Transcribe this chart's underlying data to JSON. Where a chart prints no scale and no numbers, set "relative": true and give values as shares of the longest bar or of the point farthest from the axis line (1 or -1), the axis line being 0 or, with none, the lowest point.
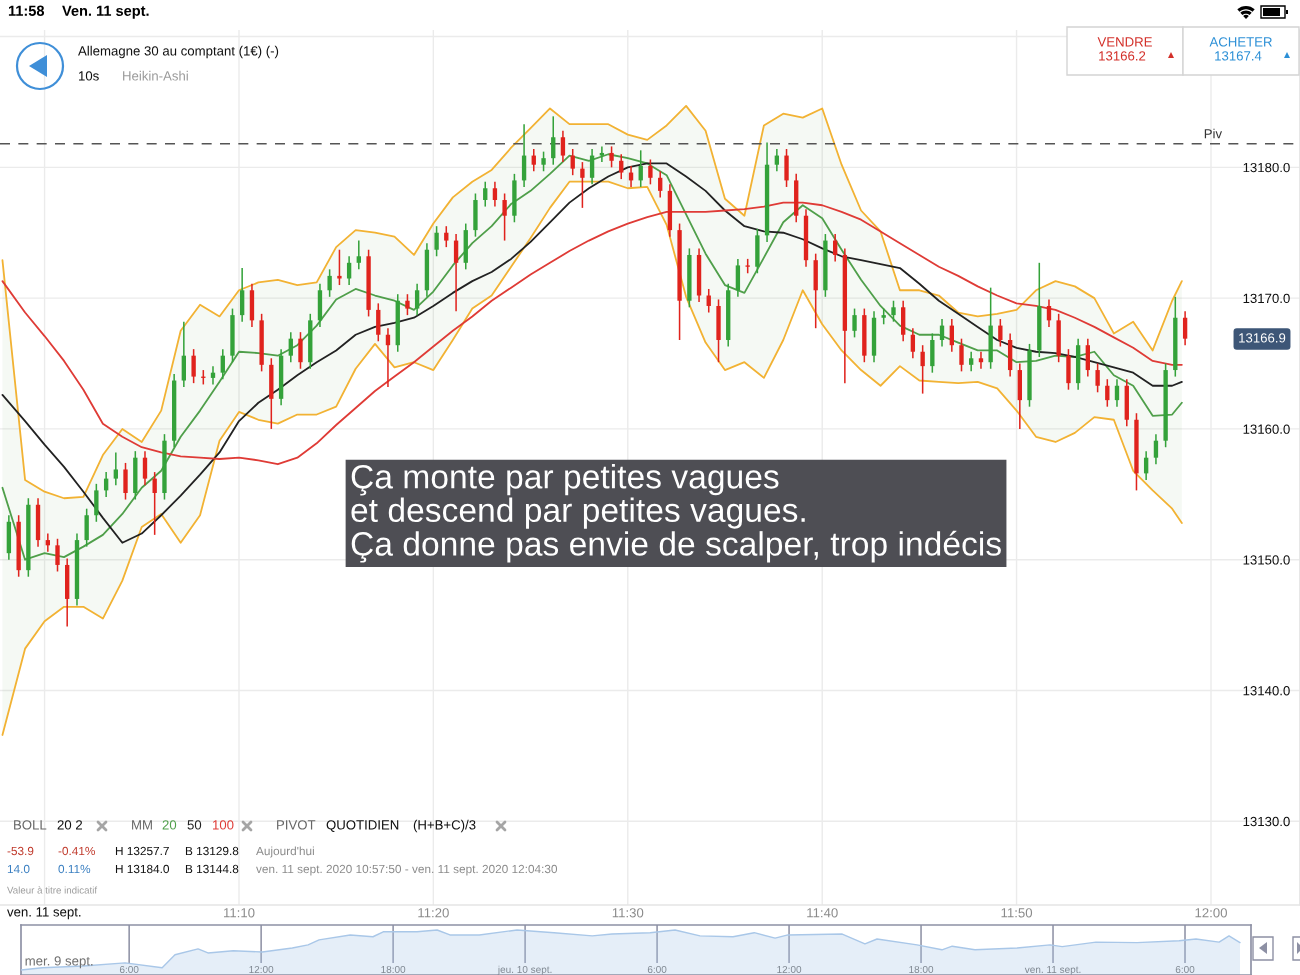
{
  "chart_data": [
    {
      "type": "candlestick",
      "title": "Allemagne 30 au comptant (1€) (-)",
      "x": [
        10.9694,
        10.9778,
        10.9861,
        10.9944,
        11.0028,
        11.0111,
        11.0194,
        11.0278,
        11.0361,
        11.0444,
        11.0528,
        11.0611,
        11.0694,
        11.0778,
        11.0861,
        11.0944,
        11.1028,
        11.1111,
        11.1194,
        11.1278,
        11.1361,
        11.1444,
        11.1528,
        11.1611,
        11.1694,
        11.1778,
        11.1861,
        11.1944,
        11.2028,
        11.2111,
        11.2194,
        11.2278,
        11.2361,
        11.2444,
        11.2528,
        11.2611,
        11.2694,
        11.2778,
        11.2861,
        11.2944,
        11.3028,
        11.3111,
        11.3194,
        11.3278,
        11.3361,
        11.3444,
        11.3528,
        11.3611,
        11.3694,
        11.3778,
        11.3861,
        11.3944,
        11.4028,
        11.4111,
        11.4194,
        11.4278,
        11.4361,
        11.4444,
        11.4528,
        11.4611,
        11.4694,
        11.4778,
        11.4861,
        11.4944,
        11.5028,
        11.5111,
        11.5194,
        11.5278,
        11.5361,
        11.5444,
        11.5528,
        11.5611,
        11.5694,
        11.5778,
        11.5861,
        11.5944,
        11.6028,
        11.6111,
        11.6194,
        11.6278,
        11.6361,
        11.6444,
        11.6528,
        11.6611,
        11.6694,
        11.6778,
        11.6861,
        11.6944,
        11.7028,
        11.7111,
        11.7194,
        11.7278,
        11.7361,
        11.7444,
        11.7528,
        11.7611,
        11.7694,
        11.7778,
        11.7861,
        11.7944,
        11.8028,
        11.8111,
        11.8194,
        11.8278,
        11.8361,
        11.8444,
        11.8528,
        11.8611,
        11.8694,
        11.8778,
        11.8861,
        11.8944,
        11.9028,
        11.9111,
        11.9194,
        11.9278,
        11.9361,
        11.9444,
        11.9528,
        11.9611,
        11.9694,
        11.9778
      ],
      "ohlc": [
        [
          13150.5,
          13153.4,
          13150.0,
          13152.9
        ],
        [
          13152.9,
          13153.4,
          13148.7,
          13149.2
        ],
        [
          13149.2,
          13154.7,
          13148.7,
          13154.2
        ],
        [
          13154.2,
          13154.7,
          13151.0,
          13151.5
        ],
        [
          13151.5,
          13152.0,
          13150.6,
          13151.1
        ],
        [
          13151.1,
          13151.6,
          13149.1,
          13149.6
        ],
        [
          13149.6,
          13150.1,
          13144.9,
          13147.0
        ],
        [
          13147.0,
          13152.0,
          13146.5,
          13151.5
        ],
        [
          13151.5,
          13153.9,
          13151.0,
          13153.4
        ],
        [
          13153.4,
          13155.8,
          13152.9,
          13155.3
        ],
        [
          13155.3,
          13156.7,
          13154.8,
          13156.2
        ],
        [
          13156.2,
          13158.2,
          13155.7,
          13156.9
        ],
        [
          13156.9,
          13157.4,
          13154.6,
          13155.1
        ],
        [
          13155.1,
          13158.3,
          13154.6,
          13157.8
        ],
        [
          13157.8,
          13158.3,
          13155.7,
          13156.2
        ],
        [
          13156.2,
          13156.7,
          13151.9,
          13155.1
        ],
        [
          13155.1,
          13159.6,
          13154.6,
          13159.1
        ],
        [
          13159.1,
          13164.2,
          13158.6,
          13163.7
        ],
        [
          13163.7,
          13168.2,
          13163.2,
          13165.6
        ],
        [
          13165.6,
          13166.1,
          13163.5,
          13164.0
        ],
        [
          13164.0,
          13164.5,
          13163.4,
          13163.9
        ],
        [
          13163.9,
          13164.8,
          13163.4,
          13164.3
        ],
        [
          13164.3,
          13166.1,
          13163.8,
          13165.6
        ],
        [
          13165.6,
          13169.2,
          13165.1,
          13168.7
        ],
        [
          13168.7,
          13172.3,
          13168.2,
          13170.6
        ],
        [
          13170.6,
          13171.1,
          13167.8,
          13168.3
        ],
        [
          13168.3,
          13168.8,
          13164.4,
          13164.9
        ],
        [
          13164.9,
          13165.4,
          13160.0,
          13162.3
        ],
        [
          13162.3,
          13166.1,
          13161.8,
          13165.6
        ],
        [
          13165.6,
          13167.4,
          13165.1,
          13166.9
        ],
        [
          13166.9,
          13167.4,
          13164.6,
          13165.1
        ],
        [
          13165.1,
          13168.8,
          13164.6,
          13168.3
        ],
        [
          13168.3,
          13171.1,
          13167.8,
          13170.6
        ],
        [
          13170.6,
          13172.2,
          13170.1,
          13171.7
        ],
        [
          13171.7,
          13173.7,
          13171.0,
          13171.5
        ],
        [
          13171.5,
          13173.2,
          13171.0,
          13172.7
        ],
        [
          13172.7,
          13174.4,
          13172.2,
          13173.2
        ],
        [
          13173.2,
          13173.7,
          13168.6,
          13169.1
        ],
        [
          13169.1,
          13169.6,
          13166.7,
          13167.2
        ],
        [
          13167.2,
          13167.7,
          13163.2,
          13166.4
        ],
        [
          13166.4,
          13170.3,
          13165.9,
          13169.8
        ],
        [
          13169.8,
          13170.3,
          13168.7,
          13169.2
        ],
        [
          13169.2,
          13171.1,
          13168.7,
          13170.6
        ],
        [
          13170.6,
          13174.2,
          13170.1,
          13173.7
        ],
        [
          13173.7,
          13175.5,
          13173.2,
          13175.0
        ],
        [
          13175.0,
          13175.5,
          13173.9,
          13174.4
        ],
        [
          13174.4,
          13174.9,
          13169.0,
          13172.7
        ],
        [
          13172.7,
          13175.7,
          13172.2,
          13175.2
        ],
        [
          13175.2,
          13178.0,
          13174.7,
          13177.5
        ],
        [
          13177.5,
          13178.9,
          13177.0,
          13178.4
        ],
        [
          13178.4,
          13178.9,
          13177.0,
          13177.5
        ],
        [
          13177.5,
          13178.0,
          13174.4,
          13176.3
        ],
        [
          13176.3,
          13179.5,
          13175.8,
          13179.0
        ],
        [
          13179.0,
          13183.3,
          13178.5,
          13180.9
        ],
        [
          13180.9,
          13181.4,
          13179.7,
          13180.2
        ],
        [
          13180.2,
          13181.2,
          13179.7,
          13180.7
        ],
        [
          13180.7,
          13183.9,
          13180.2,
          13182.3
        ],
        [
          13182.3,
          13182.8,
          13180.4,
          13180.9
        ],
        [
          13180.9,
          13181.4,
          13179.4,
          13179.9
        ],
        [
          13179.9,
          13180.4,
          13176.9,
          13179.2
        ],
        [
          13179.2,
          13181.4,
          13178.7,
          13180.9
        ],
        [
          13180.9,
          13181.6,
          13180.4,
          13181.1
        ],
        [
          13181.1,
          13181.6,
          13180.0,
          13180.5
        ],
        [
          13180.5,
          13181.0,
          13179.1,
          13179.6
        ],
        [
          13179.6,
          13180.1,
          13178.5,
          13179.0
        ],
        [
          13179.0,
          13181.3,
          13178.5,
          13180.1
        ],
        [
          13180.1,
          13180.6,
          13178.7,
          13179.2
        ],
        [
          13179.2,
          13179.7,
          13177.7,
          13178.2
        ],
        [
          13178.2,
          13178.7,
          13174.7,
          13175.2
        ],
        [
          13175.2,
          13175.7,
          13166.8,
          13169.8
        ],
        [
          13169.8,
          13173.8,
          13169.3,
          13173.3
        ],
        [
          13173.3,
          13173.8,
          13169.7,
          13170.2
        ],
        [
          13170.2,
          13170.7,
          13168.9,
          13169.4
        ],
        [
          13169.4,
          13169.9,
          13165.1,
          13166.8
        ],
        [
          13166.8,
          13171.1,
          13166.3,
          13170.6
        ],
        [
          13170.6,
          13173.0,
          13170.1,
          13172.5
        ],
        [
          13172.5,
          13173.0,
          13171.9,
          13172.4
        ],
        [
          13172.4,
          13175.3,
          13171.9,
          13174.8
        ],
        [
          13174.8,
          13181.9,
          13174.3,
          13180.2
        ],
        [
          13180.2,
          13181.4,
          13179.7,
          13180.9
        ],
        [
          13180.9,
          13181.4,
          13178.5,
          13179.0
        ],
        [
          13179.0,
          13179.5,
          13175.8,
          13176.3
        ],
        [
          13176.3,
          13176.8,
          13172.4,
          13172.9
        ],
        [
          13172.9,
          13173.4,
          13167.7,
          13170.6
        ],
        [
          13170.6,
          13174.9,
          13170.1,
          13174.4
        ],
        [
          13174.4,
          13174.9,
          13172.8,
          13173.3
        ],
        [
          13173.3,
          13173.8,
          13163.5,
          13167.5
        ],
        [
          13167.5,
          13169.2,
          13167.0,
          13168.7
        ],
        [
          13168.7,
          13169.2,
          13165.1,
          13165.6
        ],
        [
          13165.6,
          13169.0,
          13165.1,
          13168.5
        ],
        [
          13168.5,
          13169.2,
          13168.0,
          13168.7
        ],
        [
          13168.7,
          13169.8,
          13168.2,
          13169.3
        ],
        [
          13169.3,
          13169.8,
          13166.7,
          13167.2
        ],
        [
          13167.2,
          13167.7,
          13165.4,
          13165.9
        ],
        [
          13165.9,
          13166.4,
          13162.7,
          13164.8
        ],
        [
          13164.8,
          13167.3,
          13164.3,
          13166.8
        ],
        [
          13166.8,
          13168.4,
          13166.3,
          13167.9
        ],
        [
          13167.9,
          13168.4,
          13165.9,
          13166.4
        ],
        [
          13166.4,
          13166.9,
          13164.4,
          13164.9
        ],
        [
          13164.9,
          13165.9,
          13164.4,
          13165.4
        ],
        [
          13165.4,
          13165.9,
          13164.6,
          13165.1
        ],
        [
          13165.1,
          13170.8,
          13164.6,
          13167.9
        ],
        [
          13167.9,
          13168.4,
          13166.3,
          13166.8
        ],
        [
          13166.8,
          13167.3,
          13164.0,
          13164.5
        ],
        [
          13164.5,
          13165.0,
          13160.0,
          13162.2
        ],
        [
          13162.2,
          13166.5,
          13161.7,
          13166.0
        ],
        [
          13166.0,
          13172.7,
          13165.5,
          13169.4
        ],
        [
          13169.4,
          13169.9,
          13167.8,
          13168.3
        ],
        [
          13168.3,
          13168.8,
          13165.1,
          13165.6
        ],
        [
          13165.6,
          13166.1,
          13163.0,
          13163.5
        ],
        [
          13163.5,
          13166.9,
          13163.0,
          13166.4
        ],
        [
          13166.4,
          13166.9,
          13164.0,
          13164.5
        ],
        [
          13164.5,
          13165.0,
          13162.8,
          13163.3
        ],
        [
          13163.3,
          13163.8,
          13161.7,
          13162.2
        ],
        [
          13162.2,
          13163.8,
          13161.7,
          13163.3
        ],
        [
          13163.3,
          13163.8,
          13160.2,
          13160.7
        ],
        [
          13160.7,
          13161.2,
          13155.3,
          13156.6
        ],
        [
          13156.6,
          13158.3,
          13156.1,
          13157.8
        ],
        [
          13157.8,
          13159.6,
          13157.3,
          13159.1
        ],
        [
          13159.1,
          13165.0,
          13158.6,
          13164.5
        ],
        [
          13164.5,
          13170.1,
          13164.0,
          13168.5
        ],
        [
          13168.5,
          13169.0,
          13166.4,
          13166.9
        ]
      ],
      "colors": [
        "#34a23a",
        "#e0231d",
        "#34a23a",
        "#e0231d",
        "#e0231d",
        "#e0231d",
        "#e0231d",
        "#34a23a",
        "#34a23a",
        "#34a23a",
        "#34a23a",
        "#34a23a",
        "#e0231d",
        "#34a23a",
        "#e0231d",
        "#e0231d",
        "#34a23a",
        "#34a23a",
        "#34a23a",
        "#e0231d",
        "#e0231d",
        "#34a23a",
        "#34a23a",
        "#34a23a",
        "#34a23a",
        "#e0231d",
        "#e0231d",
        "#e0231d",
        "#34a23a",
        "#34a23a",
        "#e0231d",
        "#34a23a",
        "#34a23a",
        "#34a23a",
        "#e0231d",
        "#34a23a",
        "#34a23a",
        "#e0231d",
        "#e0231d",
        "#e0231d",
        "#34a23a",
        "#e0231d",
        "#34a23a",
        "#34a23a",
        "#34a23a",
        "#e0231d",
        "#e0231d",
        "#34a23a",
        "#34a23a",
        "#34a23a",
        "#e0231d",
        "#e0231d",
        "#34a23a",
        "#34a23a",
        "#e0231d",
        "#34a23a",
        "#34a23a",
        "#e0231d",
        "#e0231d",
        "#e0231d",
        "#34a23a",
        "#34a23a",
        "#e0231d",
        "#e0231d",
        "#e0231d",
        "#34a23a",
        "#e0231d",
        "#e0231d",
        "#e0231d",
        "#e0231d",
        "#34a23a",
        "#e0231d",
        "#e0231d",
        "#e0231d",
        "#34a23a",
        "#34a23a",
        "#e0231d",
        "#34a23a",
        "#34a23a",
        "#34a23a",
        "#e0231d",
        "#e0231d",
        "#e0231d",
        "#e0231d",
        "#34a23a",
        "#e0231d",
        "#e0231d",
        "#34a23a",
        "#e0231d",
        "#34a23a",
        "#34a23a",
        "#34a23a",
        "#e0231d",
        "#e0231d",
        "#e0231d",
        "#34a23a",
        "#34a23a",
        "#e0231d",
        "#e0231d",
        "#34a23a",
        "#e0231d",
        "#34a23a",
        "#e0231d",
        "#e0231d",
        "#e0231d",
        "#34a23a",
        "#34a23a",
        "#e0231d",
        "#e0231d",
        "#e0231d",
        "#34a23a",
        "#e0231d",
        "#e0231d",
        "#e0231d",
        "#34a23a",
        "#e0231d",
        "#e0231d",
        "#34a23a",
        "#34a23a",
        "#34a23a",
        "#34a23a",
        "#e0231d"
      ],
      "series": [
        {
          "type": "line",
          "color": "#f2b233",
          "x": [
            10.9639,
            10.9833,
            11.0,
            11.0167,
            11.0333,
            11.05,
            11.0667,
            11.0833,
            11.1,
            11.1167,
            11.1333,
            11.15,
            11.1667,
            11.1833,
            11.2,
            11.2167,
            11.2333,
            11.25,
            11.2667,
            11.2833,
            11.3,
            11.3167,
            11.3333,
            11.35,
            11.3667,
            11.3833,
            11.4,
            11.4167,
            11.4333,
            11.45,
            11.4667,
            11.4833,
            11.5,
            11.5167,
            11.5333,
            11.55,
            11.5667,
            11.5833,
            11.6,
            11.6167,
            11.6333,
            11.65,
            11.6667,
            11.6833,
            11.7,
            11.7167,
            11.7333,
            11.75,
            11.7667,
            11.7833,
            11.8,
            11.8167,
            11.8333,
            11.85,
            11.8667,
            11.8833,
            11.9,
            11.9167,
            11.9333,
            11.95,
            11.9667,
            11.975
          ],
          "values": [
            13172.9,
            13156.1,
            13155.2,
            13154.7,
            13154.8,
            13158.0,
            13160.0,
            13159.0,
            13161.4,
            13167.5,
            13169.5,
            13168.6,
            13170.6,
            13171.2,
            13171.4,
            13171.0,
            13171.2,
            13173.9,
            13175.2,
            13175.0,
            13174.7,
            13173.3,
            13175.7,
            13177.7,
            13178.9,
            13179.8,
            13181.5,
            13183.0,
            13184.5,
            13183.3,
            13183.3,
            13183.3,
            13182.5,
            13182.1,
            13183.2,
            13184.7,
            13182.8,
            13177.6,
            13176.3,
            13183.2,
            13184.1,
            13183.8,
            13184.5,
            13180.2,
            13176.7,
            13175.1,
            13170.6,
            13170.6,
            13170.2,
            13168.9,
            13168.6,
            13168.8,
            13169.1,
            13170.6,
            13171.3,
            13170.9,
            13170.0,
            13167.3,
            13168.2,
            13166.0,
            13169.8,
            13171.3
          ]
        },
        {
          "type": "line",
          "color": "#f2b233",
          "x": [
            10.9639,
            10.9833,
            11.0,
            11.0167,
            11.0333,
            11.05,
            11.0667,
            11.0833,
            11.1,
            11.1167,
            11.1333,
            11.15,
            11.1667,
            11.1833,
            11.2,
            11.2167,
            11.2333,
            11.25,
            11.2667,
            11.2833,
            11.3,
            11.3167,
            11.3333,
            11.35,
            11.3667,
            11.3833,
            11.4,
            11.4167,
            11.4333,
            11.45,
            11.4667,
            11.4833,
            11.5,
            11.5167,
            11.5333,
            11.55,
            11.5667,
            11.5833,
            11.6,
            11.6167,
            11.6333,
            11.65,
            11.6667,
            11.6833,
            11.7,
            11.7167,
            11.7333,
            11.75,
            11.7667,
            11.7833,
            11.8,
            11.8167,
            11.8333,
            11.85,
            11.8667,
            11.8833,
            11.9,
            11.9167,
            11.9333,
            11.95,
            11.9667,
            11.975
          ],
          "values": [
            13136.6,
            13143.2,
            13145.3,
            13146.4,
            13146.4,
            13145.5,
            13148.4,
            13152.5,
            13153.5,
            13151.3,
            13153.4,
            13159.1,
            13161.3,
            13160.7,
            13160.4,
            13161.1,
            13161.1,
            13161.7,
            13164.6,
            13166.5,
            13164.7,
            13165.1,
            13164.5,
            13166.8,
            13169.2,
            13170.2,
            13172.4,
            13174.6,
            13176.9,
            13178.9,
            13178.9,
            13178.9,
            13178.4,
            13178.5,
            13175.6,
            13170.1,
            13166.6,
            13164.5,
            13165.1,
            13163.9,
            13166.8,
            13170.6,
            13168.0,
            13166.0,
            13164.5,
            13163.3,
            13164.8,
            13163.7,
            13163.6,
            13163.5,
            13163.6,
            13163.1,
            13161.4,
            13159.4,
            13159.0,
            13159.7,
            13160.9,
            13160.7,
            13156.8,
            13155.3,
            13153.9,
            13152.8
          ]
        },
        {
          "type": "line",
          "name": "20",
          "color": "#4f9f4a",
          "x": [
            10.9639,
            10.9833,
            11.0,
            11.0167,
            11.0333,
            11.05,
            11.0667,
            11.0833,
            11.1,
            11.1167,
            11.1333,
            11.15,
            11.1667,
            11.1833,
            11.2,
            11.2167,
            11.2333,
            11.25,
            11.2667,
            11.2833,
            11.3,
            11.3167,
            11.3333,
            11.35,
            11.3667,
            11.3833,
            11.4,
            11.4167,
            11.4333,
            11.45,
            11.4667,
            11.4833,
            11.5,
            11.5167,
            11.5333,
            11.55,
            11.5667,
            11.5833,
            11.6,
            11.6167,
            11.6333,
            11.65,
            11.6667,
            11.6833,
            11.7,
            11.7167,
            11.7333,
            11.75,
            11.7667,
            11.7833,
            11.8,
            11.8167,
            11.8333,
            11.85,
            11.8667,
            11.8833,
            11.9,
            11.9167,
            11.9333,
            11.95,
            11.9667,
            11.975
          ],
          "values": [
            13155.5,
            13150.0,
            13150.5,
            13150.2,
            13151.0,
            13151.9,
            13153.5,
            13155.5,
            13156.8,
            13159.4,
            13161.4,
            13163.6,
            13165.9,
            13165.8,
            13165.6,
            13166.4,
            13167.9,
            13169.9,
            13170.7,
            13170.2,
            13169.8,
            13169.1,
            13170.5,
            13172.5,
            13174.2,
            13175.5,
            13177.2,
            13178.2,
            13179.5,
            13180.9,
            13180.5,
            13181.0,
            13180.7,
            13180.3,
            13179.4,
            13176.4,
            13173.4,
            13171.0,
            13170.4,
            13173.1,
            13175.8,
            13177.1,
            13176.1,
            13173.7,
            13171.4,
            13169.4,
            13167.9,
            13167.2,
            13167.2,
            13166.6,
            13166.0,
            13166.0,
            13165.1,
            13165.2,
            13165.6,
            13165.5,
            13165.9,
            13164.1,
            13163.3,
            13161.0,
            13161.1,
            13162.0
          ],
          "upper": [
            13172.9,
            13156.1,
            13155.2,
            13154.7,
            13154.8,
            13158.0,
            13160.0,
            13159.0,
            13161.4,
            13167.5,
            13169.5,
            13168.6,
            13170.6,
            13171.2,
            13171.4,
            13171.0,
            13171.2,
            13173.9,
            13175.2,
            13175.0,
            13174.7,
            13173.3,
            13175.7,
            13177.7,
            13178.9,
            13179.8,
            13181.5,
            13183.0,
            13184.5,
            13183.3,
            13183.3,
            13183.3,
            13182.5,
            13182.1,
            13183.2,
            13184.7,
            13182.8,
            13177.6,
            13176.3,
            13183.2,
            13184.1,
            13183.8,
            13184.5,
            13180.2,
            13176.7,
            13175.1,
            13170.6,
            13170.6,
            13170.2,
            13168.9,
            13168.6,
            13168.8,
            13169.1,
            13170.6,
            13171.3,
            13170.9,
            13170.0,
            13167.3,
            13168.2,
            13166.0,
            13169.8,
            13171.3
          ],
          "lower": [
            13136.6,
            13143.2,
            13145.3,
            13146.4,
            13146.4,
            13145.5,
            13148.4,
            13152.5,
            13153.5,
            13151.3,
            13153.4,
            13159.1,
            13161.3,
            13160.7,
            13160.4,
            13161.1,
            13161.1,
            13161.7,
            13164.6,
            13166.5,
            13164.7,
            13165.1,
            13164.5,
            13166.8,
            13169.2,
            13170.2,
            13172.4,
            13174.6,
            13176.9,
            13178.9,
            13178.9,
            13178.9,
            13178.4,
            13178.5,
            13175.6,
            13170.1,
            13166.6,
            13164.5,
            13165.1,
            13163.9,
            13166.8,
            13170.6,
            13168.0,
            13166.0,
            13164.5,
            13163.3,
            13164.8,
            13163.7,
            13163.6,
            13163.5,
            13163.6,
            13163.1,
            13161.4,
            13159.4,
            13159.0,
            13159.7,
            13160.9,
            13160.7,
            13156.8,
            13155.3,
            13153.9,
            13152.8
          ]
        },
        {
          "type": "line",
          "name": "50",
          "color": "#222222",
          "x": [
            10.9639,
            10.9833,
            11.0,
            11.0167,
            11.0333,
            11.05,
            11.0667,
            11.0833,
            11.1,
            11.1167,
            11.1333,
            11.15,
            11.1667,
            11.1833,
            11.2,
            11.2167,
            11.2333,
            11.25,
            11.2667,
            11.2833,
            11.3,
            11.3167,
            11.3333,
            11.35,
            11.3667,
            11.3833,
            11.4,
            11.4167,
            11.4333,
            11.45,
            11.4667,
            11.4833,
            11.5,
            11.5167,
            11.5333,
            11.55,
            11.5667,
            11.5833,
            11.6,
            11.6167,
            11.6333,
            11.65,
            11.6667,
            11.6833,
            11.7,
            11.7167,
            11.7333,
            11.75,
            11.7667,
            11.7833,
            11.8,
            11.8167,
            11.8333,
            11.85,
            11.8667,
            11.8833,
            11.9,
            11.9167,
            11.9333,
            11.95,
            11.9667,
            11.975
          ],
          "values": [
            13162.6,
            13160.6,
            13158.8,
            13157.1,
            13155.2,
            13153.2,
            13151.3,
            13152.0,
            13153.4,
            13154.9,
            13156.5,
            13158.2,
            13160.6,
            13162.0,
            13163.0,
            13164.1,
            13165.1,
            13166.0,
            13167.2,
            13167.8,
            13168.1,
            13168.5,
            13169.4,
            13170.4,
            13171.3,
            13172.0,
            13173.0,
            13174.3,
            13175.8,
            13177.3,
            13178.4,
            13179.3,
            13180.0,
            13180.3,
            13180.3,
            13179.3,
            13178.2,
            13176.7,
            13175.5,
            13175.1,
            13175.0,
            13174.5,
            13173.8,
            13173.2,
            13172.9,
            13172.6,
            13172.3,
            13171.1,
            13169.8,
            13168.8,
            13167.8,
            13166.8,
            13166.2,
            13165.9,
            13165.8,
            13165.5,
            13165.1,
            13164.7,
            13164.3,
            13163.3,
            13163.3,
            13163.6
          ]
        },
        {
          "type": "line",
          "name": "100",
          "color": "#df3b36",
          "x": [
            10.9639,
            10.9833,
            11.0,
            11.0167,
            11.0333,
            11.05,
            11.0667,
            11.0833,
            11.1,
            11.1167,
            11.1333,
            11.15,
            11.1667,
            11.1833,
            11.2,
            11.2167,
            11.2333,
            11.25,
            11.2667,
            11.2833,
            11.3,
            11.3167,
            11.3333,
            11.35,
            11.3667,
            11.3833,
            11.4,
            11.4167,
            11.4333,
            11.45,
            11.4667,
            11.4833,
            11.5,
            11.5167,
            11.5333,
            11.55,
            11.5667,
            11.5833,
            11.6,
            11.6167,
            11.6333,
            11.65,
            11.6667,
            11.6833,
            11.7,
            11.7167,
            11.7333,
            11.75,
            11.7667,
            11.7833,
            11.8,
            11.8167,
            11.8333,
            11.85,
            11.8667,
            11.8833,
            11.9,
            11.9167,
            11.9333,
            11.95,
            11.9667,
            11.975
          ],
          "values": [
            13171.3,
            13168.9,
            13167.1,
            13165.2,
            13163.0,
            13160.4,
            13159.4,
            13158.6,
            13158.2,
            13157.9,
            13157.8,
            13157.7,
            13157.8,
            13157.6,
            13157.3,
            13157.8,
            13158.9,
            13160.3,
            13161.6,
            13162.9,
            13164.0,
            13165.1,
            13166.3,
            13167.5,
            13168.6,
            13169.8,
            13170.8,
            13171.8,
            13172.7,
            13173.6,
            13174.4,
            13175.1,
            13175.7,
            13176.2,
            13176.6,
            13176.6,
            13176.6,
            13176.7,
            13176.8,
            13177.0,
            13177.3,
            13177.3,
            13177.1,
            13176.6,
            13176.0,
            13175.1,
            13174.2,
            13173.3,
            13172.4,
            13171.7,
            13170.9,
            13170.2,
            13169.6,
            13169.4,
            13169.1,
            13168.5,
            13167.8,
            13167.0,
            13166.2,
            13165.2,
            13164.9,
            13164.9
          ]
        }
      ],
      "xlim": [
        10.9618,
        12.0763
      ],
      "xticks": [
        {
          "value": 11.0,
          "label": null
        },
        {
          "value": 11.1667,
          "label": "11:10"
        },
        {
          "value": 11.3333,
          "label": "11:20"
        },
        {
          "value": 11.5,
          "label": "11:30"
        },
        {
          "value": 11.6667,
          "label": "11:40"
        },
        {
          "value": 11.8333,
          "label": "11:50"
        },
        {
          "value": 12.0,
          "label": "12:00"
        }
      ],
      "ylim": [
        13123.6,
        13190.5
      ],
      "yticks": [
        {
          "value": 13130,
          "label": "13130.0"
        },
        {
          "value": 13140,
          "label": "13140.0"
        },
        {
          "value": 13150,
          "label": "13150.0"
        },
        {
          "value": 13160,
          "label": "13160.0"
        },
        {
          "value": 13170,
          "label": "13170.0"
        },
        {
          "value": 13180,
          "label": "13180.0"
        },
        {
          "value": 13190,
          "label": null
        }
      ],
      "grid": true,
      "ref_lines": [
        {
          "axis": "y",
          "value": 13181.8,
          "label": "Piv",
          "color": "#555555",
          "line_style": "dashed"
        }
      ],
      "annotations": [
        "11:58",
        "Ven. 11 sept.",
        "10s",
        "Heikin-Ashi",
        "VENDRE",
        "13166.2",
        "ACHETER",
        "13167.4",
        "Ça monte par petites vagues\net descend par petites vagues.\nÇa donne pas envie de scalper, trop indécis",
        "13166.9",
        "BOLL",
        "20 2",
        "MM",
        "PIVOT",
        "QUOTIDIEN",
        "(H+B+C)/3",
        "-53.9",
        "-0.41%",
        "H 13257.7",
        "B 13129.8",
        "Aujourd'hui",
        "14.0",
        "0.11%",
        "H 13184.0",
        "B 13144.8",
        "ven. 11 sept. 2020 10:57:50 - ven. 11 sept. 2020 12:04:30",
        "Valeur à titre indicatif",
        "ven. 11 sept."
      ]
    },
    {
      "type": "area",
      "relative": true,
      "series": [
        {
          "color": "#a9c7e8",
          "x": [
            "2020-09-09T01:05",
            "2020-09-09T02:03",
            "2020-09-09T03:55",
            "2020-09-09T05:49",
            "2020-09-09T07:30",
            "2020-09-09T08:05",
            "2020-09-09T09:08",
            "2020-09-09T09:35",
            "2020-09-09T10:44",
            "2020-09-09T12:03",
            "2020-09-09T13:25",
            "2020-09-09T14:08",
            "2020-09-09T14:38",
            "2020-09-09T16:03",
            "2020-09-09T17:05",
            "2020-09-09T17:33",
            "2020-09-09T19:05",
            "2020-09-09T20:00",
            "2020-09-09T20:35",
            "2020-09-09T21:55",
            "2020-09-09T23:38",
            "2020-09-10T01:19",
            "2020-09-10T03:03",
            "2020-09-10T03:57",
            "2020-09-10T05:41",
            "2020-09-10T06:49",
            "2020-09-10T07:57",
            "2020-09-10T09:27",
            "2020-09-10T10:25",
            "2020-09-10T11:22",
            "2020-09-10T11:57",
            "2020-09-10T14:25",
            "2020-09-10T15:27",
            "2020-09-10T16:00",
            "2020-09-10T17:49",
            "2020-09-10T18:57",
            "2020-09-10T19:25",
            "2020-09-10T20:27",
            "2020-09-10T22:22",
            "2020-09-10T23:52",
            "2020-09-11T00:25",
            "2020-09-11T01:57",
            "2020-09-11T03:49",
            "2020-09-11T05:44",
            "2020-09-11T06:30",
            "2020-09-11T07:33",
            "2020-09-11T08:00",
            "2020-09-11T08:30"
          ],
          "values": [
            0.11,
            0.16,
            0.2,
            0.27,
            0.16,
            0.45,
            0.58,
            0.49,
            0.54,
            0.51,
            0.6,
            0.67,
            0.78,
            0.89,
            0.85,
            0.96,
            0.96,
            1.0,
            0.89,
            0.89,
            1.0,
            0.94,
            0.87,
            0.91,
            0.94,
            1.0,
            0.87,
            0.85,
            0.94,
            0.82,
            0.89,
            0.91,
            0.69,
            0.8,
            0.67,
            0.56,
            0.64,
            0.56,
            0.6,
            0.67,
            0.63,
            0.73,
            0.72,
            0.76,
            0.8,
            0.73,
            0.87,
            0.72
          ]
        }
      ],
      "xlim": [
        "2020-09-09T01:05",
        "2020-09-11T09:00"
      ],
      "xticks": [
        {
          "value": "2020-09-09T06:00",
          "label": "6:00"
        },
        {
          "value": "2020-09-09T12:00",
          "label": "12:00"
        },
        {
          "value": "2020-09-09T18:00",
          "label": "18:00"
        },
        {
          "value": "2020-09-10T00:00",
          "label": "jeu. 10 sept."
        },
        {
          "value": "2020-09-10T06:00",
          "label": "6:00"
        },
        {
          "value": "2020-09-10T12:00",
          "label": "12:00"
        },
        {
          "value": "2020-09-10T18:00",
          "label": "18:00"
        },
        {
          "value": "2020-09-11T00:00",
          "label": "ven. 11 sept."
        },
        {
          "value": "2020-09-11T06:00",
          "label": "6:00"
        }
      ],
      "grid": "x",
      "tick_labels": "x",
      "annotations": [
        "mer. 9 sept."
      ]
    }
  ]
}
